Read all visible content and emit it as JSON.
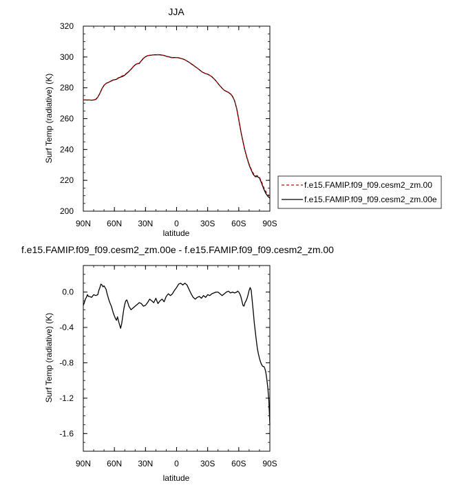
{
  "chart_data": [
    {
      "type": "line",
      "title": "JJA",
      "xlabel": "latitude",
      "ylabel": "Surf Temp (radiative) (K)",
      "x_ticks": [
        90,
        60,
        30,
        0,
        -30,
        -60,
        -90
      ],
      "x_tick_labels": [
        "90N",
        "60N",
        "30N",
        "0",
        "30S",
        "60S",
        "90S"
      ],
      "xlim": [
        90,
        -90
      ],
      "ylim": [
        200,
        320
      ],
      "y_ticks": [
        200,
        220,
        240,
        260,
        280,
        300,
        320
      ],
      "y_tick_labels": [
        "200",
        "220",
        "240",
        "260",
        "280",
        "300",
        "320"
      ],
      "legend_position": "right",
      "series": [
        {
          "name": "f.e15.FAMIP.f09_f09.cesm2_zm.00",
          "color": "#c00000",
          "dash": "dashed",
          "x": [
            90,
            86,
            82,
            80,
            78,
            76,
            74,
            72,
            70,
            68,
            66,
            64,
            62,
            60,
            58,
            55,
            52,
            50,
            48,
            46,
            44,
            42,
            40,
            38,
            36,
            34,
            32,
            30,
            28,
            26,
            24,
            22,
            20,
            18,
            16,
            14,
            12,
            10,
            8,
            6,
            4,
            2,
            0,
            -2,
            -4,
            -6,
            -8,
            -10,
            -12,
            -14,
            -16,
            -18,
            -20,
            -22,
            -24,
            -26,
            -28,
            -30,
            -32,
            -34,
            -36,
            -38,
            -40,
            -42,
            -44,
            -46,
            -48,
            -50,
            -52,
            -54,
            -56,
            -58,
            -60,
            -62,
            -64,
            -66,
            -68,
            -70,
            -72,
            -74,
            -76,
            -78,
            -80,
            -82,
            -84,
            -86,
            -88,
            -90
          ],
          "values": [
            272.2,
            272.2,
            272.1,
            272.2,
            272.6,
            274.0,
            276.5,
            279.4,
            281.6,
            282.9,
            283.4,
            284.2,
            285.0,
            285.3,
            285.7,
            287.0,
            287.8,
            288.5,
            289.6,
            290.7,
            292.1,
            293.6,
            295.0,
            295.7,
            296.0,
            297.6,
            299.2,
            300.2,
            300.8,
            301.1,
            301.2,
            301.4,
            301.4,
            301.5,
            301.4,
            301.2,
            301.0,
            300.5,
            300.1,
            299.7,
            299.5,
            299.6,
            299.6,
            299.5,
            299.1,
            298.7,
            298.2,
            297.4,
            296.6,
            295.7,
            294.7,
            293.7,
            292.8,
            291.7,
            290.6,
            289.8,
            289.2,
            288.8,
            288.1,
            287.2,
            285.9,
            284.5,
            282.8,
            281.2,
            279.7,
            278.4,
            277.8,
            277.1,
            276.2,
            274.5,
            271.6,
            266.6,
            259.6,
            252.0,
            245.4,
            239.4,
            234.7,
            230.5,
            227.3,
            224.6,
            222.9,
            223.0,
            222.1,
            219.0,
            215.6,
            212.9,
            210.8,
            209.9
          ]
        },
        {
          "name": "f.e15.FAMIP.f09_f09.cesm2_zm.00e",
          "color": "#000000",
          "dash": "solid",
          "x": [
            90,
            86,
            82,
            80,
            78,
            76,
            74,
            72,
            70,
            68,
            66,
            64,
            62,
            60,
            58,
            55,
            52,
            50,
            48,
            46,
            44,
            42,
            40,
            38,
            36,
            34,
            32,
            30,
            28,
            26,
            24,
            22,
            20,
            18,
            16,
            14,
            12,
            10,
            8,
            6,
            4,
            2,
            0,
            -2,
            -4,
            -6,
            -8,
            -10,
            -12,
            -14,
            -16,
            -18,
            -20,
            -22,
            -24,
            -26,
            -28,
            -30,
            -32,
            -34,
            -36,
            -38,
            -40,
            -42,
            -44,
            -46,
            -48,
            -50,
            -52,
            -54,
            -56,
            -58,
            -60,
            -62,
            -64,
            -66,
            -68,
            -70,
            -72,
            -74,
            -76,
            -78,
            -80,
            -82,
            -84,
            -86,
            -88,
            -90
          ],
          "values": [
            272.1,
            272.1,
            272.0,
            272.1,
            272.5,
            273.9,
            276.4,
            279.4,
            281.6,
            282.9,
            283.4,
            284.1,
            284.8,
            285.2,
            285.5,
            286.7,
            287.4,
            288.2,
            289.4,
            290.6,
            292.0,
            293.5,
            294.9,
            295.6,
            295.8,
            297.5,
            299.1,
            300.1,
            300.8,
            301.1,
            301.2,
            301.4,
            301.4,
            301.5,
            301.4,
            301.2,
            301.0,
            300.5,
            300.2,
            299.8,
            299.6,
            299.6,
            299.6,
            299.5,
            299.1,
            298.7,
            298.2,
            297.4,
            296.6,
            295.6,
            294.7,
            293.7,
            292.8,
            291.7,
            290.6,
            289.8,
            289.2,
            288.8,
            288.1,
            287.2,
            285.9,
            284.5,
            282.8,
            281.2,
            279.7,
            278.4,
            277.7,
            277.0,
            276.0,
            274.4,
            271.5,
            266.6,
            259.5,
            251.9,
            245.2,
            239.2,
            234.4,
            230.0,
            226.7,
            223.8,
            222.3,
            222.5,
            221.5,
            218.1,
            214.6,
            211.6,
            209.7,
            208.4
          ]
        }
      ]
    },
    {
      "type": "line",
      "title": "f.e15.FAMIP.f09_f09.cesm2_zm.00e - f.e15.FAMIP.f09_f09.cesm2_zm.00",
      "xlabel": "latitude",
      "ylabel": "Surf Temp (radiative) (K)",
      "x_ticks": [
        90,
        60,
        30,
        0,
        -30,
        -60,
        -90
      ],
      "x_tick_labels": [
        "90N",
        "60N",
        "30N",
        "0",
        "30S",
        "60S",
        "90S"
      ],
      "xlim": [
        90,
        -90
      ],
      "ylim": [
        -1.8,
        0.3
      ],
      "y_ticks": [
        -1.6,
        -1.2,
        -0.8,
        -0.4,
        0.0
      ],
      "y_tick_labels": [
        "-1.6",
        "-1.2",
        "-0.8",
        "-0.4",
        "0.0"
      ],
      "series": [
        {
          "color": "#000000",
          "dash": "solid",
          "x": [
            90,
            89,
            88,
            87,
            86,
            85,
            84,
            82,
            80,
            78,
            76,
            75,
            74,
            73,
            72,
            71,
            70,
            69,
            68,
            67,
            66,
            65,
            64,
            63,
            62,
            61,
            60,
            59,
            58,
            57,
            56,
            55,
            54,
            53,
            52,
            51,
            50,
            49,
            48,
            47,
            46,
            44,
            42,
            40,
            38,
            36,
            34,
            32,
            30,
            28,
            26,
            24,
            22,
            20,
            18,
            16,
            14,
            12,
            10,
            8,
            6,
            4,
            2,
            0,
            -2,
            -4,
            -6,
            -8,
            -10,
            -12,
            -14,
            -16,
            -18,
            -20,
            -22,
            -24,
            -26,
            -28,
            -30,
            -32,
            -34,
            -36,
            -38,
            -40,
            -42,
            -44,
            -46,
            -48,
            -50,
            -52,
            -54,
            -56,
            -58,
            -59,
            -60,
            -61,
            -62,
            -63,
            -64,
            -65,
            -66,
            -67,
            -68,
            -69,
            -70,
            -71,
            -72,
            -73,
            -74,
            -75,
            -76,
            -77,
            -78,
            -79,
            -80,
            -81,
            -82,
            -83,
            -84,
            -85,
            -86,
            -87,
            -88,
            -89,
            -90
          ],
          "values": [
            -0.15,
            -0.12,
            -0.08,
            -0.06,
            -0.03,
            -0.05,
            -0.05,
            -0.06,
            -0.03,
            -0.04,
            -0.03,
            0.02,
            0.05,
            0.09,
            0.08,
            0.06,
            0.07,
            0.05,
            0.03,
            -0.02,
            -0.06,
            -0.1,
            -0.13,
            -0.16,
            -0.2,
            -0.24,
            -0.27,
            -0.3,
            -0.32,
            -0.28,
            -0.33,
            -0.37,
            -0.41,
            -0.36,
            -0.28,
            -0.2,
            -0.14,
            -0.1,
            -0.09,
            -0.12,
            -0.16,
            -0.2,
            -0.18,
            -0.16,
            -0.14,
            -0.12,
            -0.13,
            -0.16,
            -0.15,
            -0.12,
            -0.08,
            -0.1,
            -0.12,
            -0.07,
            -0.13,
            -0.1,
            -0.08,
            -0.11,
            -0.05,
            -0.02,
            -0.04,
            -0.02,
            0.02,
            0.05,
            0.09,
            0.1,
            0.08,
            0.1,
            0.08,
            0.03,
            -0.02,
            -0.06,
            -0.08,
            -0.06,
            -0.05,
            -0.07,
            -0.04,
            -0.06,
            -0.03,
            -0.04,
            -0.02,
            -0.01,
            0.0,
            0.0,
            -0.02,
            -0.04,
            -0.02,
            0.0,
            0.01,
            -0.01,
            0.0,
            -0.01,
            0.0,
            0.01,
            0.0,
            -0.02,
            -0.05,
            -0.1,
            -0.15,
            -0.16,
            -0.12,
            -0.1,
            -0.07,
            -0.03,
            0.02,
            0.05,
            0.02,
            -0.1,
            -0.22,
            -0.35,
            -0.45,
            -0.55,
            -0.64,
            -0.7,
            -0.75,
            -0.79,
            -0.82,
            -0.84,
            -0.84,
            -0.86,
            -0.9,
            -0.98,
            -1.08,
            -1.22,
            -1.5
          ]
        }
      ]
    }
  ]
}
